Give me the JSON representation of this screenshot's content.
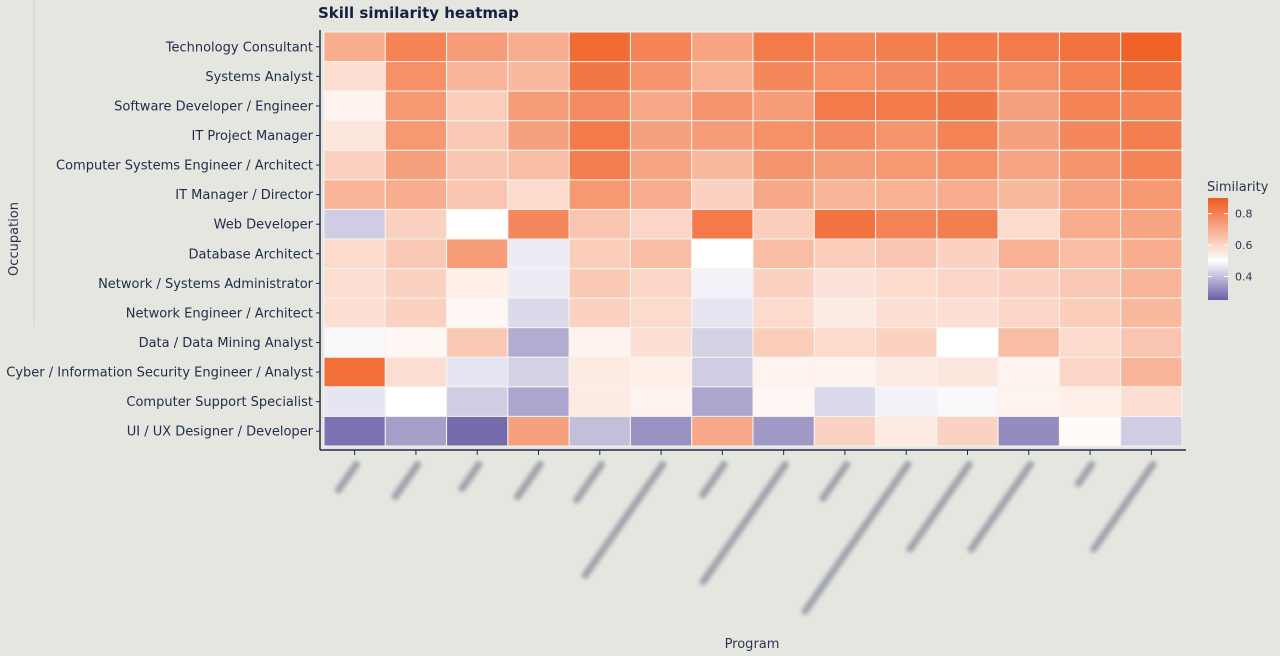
{
  "chart_data": {
    "type": "heatmap",
    "title": "Skill similarity heatmap",
    "xlabel": "Program",
    "ylabel": "Occupation",
    "x_tick_labels_legible": false,
    "rows": [
      "Technology Consultant",
      "Systems Analyst",
      "Software Developer / Engineer",
      "IT Project Manager",
      "Computer Systems Engineer / Architect",
      "IT Manager / Director",
      "Web Developer",
      "Database Architect",
      "Network / Systems Administrator",
      "Network Engineer / Architect",
      "Data / Data Mining Analyst",
      "Cyber / Information Security Engineer / Analyst",
      "Computer Support Specialist",
      "UI / UX Designer / Developer"
    ],
    "column_count": 14,
    "values": [
      [
        0.7,
        0.8,
        0.74,
        0.7,
        0.86,
        0.8,
        0.72,
        0.82,
        0.8,
        0.81,
        0.82,
        0.82,
        0.84,
        0.88
      ],
      [
        0.58,
        0.77,
        0.68,
        0.67,
        0.83,
        0.76,
        0.69,
        0.79,
        0.77,
        0.78,
        0.79,
        0.77,
        0.8,
        0.84
      ],
      [
        0.53,
        0.75,
        0.62,
        0.74,
        0.78,
        0.71,
        0.76,
        0.74,
        0.82,
        0.82,
        0.83,
        0.73,
        0.8,
        0.8
      ],
      [
        0.56,
        0.75,
        0.63,
        0.73,
        0.82,
        0.73,
        0.74,
        0.77,
        0.78,
        0.76,
        0.8,
        0.73,
        0.79,
        0.81
      ],
      [
        0.61,
        0.73,
        0.64,
        0.66,
        0.81,
        0.72,
        0.67,
        0.76,
        0.74,
        0.75,
        0.77,
        0.72,
        0.76,
        0.8
      ],
      [
        0.68,
        0.7,
        0.64,
        0.59,
        0.75,
        0.7,
        0.61,
        0.71,
        0.68,
        0.69,
        0.7,
        0.67,
        0.72,
        0.75
      ],
      [
        0.42,
        0.61,
        0.5,
        0.79,
        0.64,
        0.6,
        0.82,
        0.62,
        0.84,
        0.8,
        0.81,
        0.59,
        0.7,
        0.72
      ],
      [
        0.59,
        0.63,
        0.74,
        0.47,
        0.62,
        0.66,
        0.5,
        0.66,
        0.62,
        0.64,
        0.61,
        0.69,
        0.66,
        0.7
      ],
      [
        0.58,
        0.61,
        0.54,
        0.47,
        0.63,
        0.6,
        0.48,
        0.61,
        0.57,
        0.59,
        0.6,
        0.61,
        0.63,
        0.68
      ],
      [
        0.58,
        0.61,
        0.52,
        0.44,
        0.61,
        0.59,
        0.46,
        0.59,
        0.55,
        0.58,
        0.58,
        0.6,
        0.62,
        0.67
      ],
      [
        0.49,
        0.52,
        0.63,
        0.37,
        0.53,
        0.58,
        0.43,
        0.62,
        0.59,
        0.61,
        0.5,
        0.66,
        0.59,
        0.64
      ],
      [
        0.85,
        0.58,
        0.46,
        0.43,
        0.55,
        0.54,
        0.42,
        0.53,
        0.53,
        0.55,
        0.56,
        0.53,
        0.6,
        0.68
      ],
      [
        0.46,
        0.5,
        0.42,
        0.36,
        0.55,
        0.53,
        0.36,
        0.52,
        0.44,
        0.48,
        0.49,
        0.53,
        0.54,
        0.58
      ],
      [
        0.28,
        0.35,
        0.27,
        0.73,
        0.4,
        0.33,
        0.71,
        0.34,
        0.61,
        0.55,
        0.61,
        0.32,
        0.51,
        0.42
      ]
    ],
    "legend": {
      "title": "Similarity",
      "ticks": [
        "0.4",
        "0.6",
        "0.8"
      ],
      "tick_values": [
        0.4,
        0.6,
        0.8
      ],
      "range": [
        0.25,
        0.9
      ],
      "midpoint": 0.5,
      "placement": "right"
    },
    "colors": {
      "low": "#6a5fa6",
      "mid": "#ffffff",
      "high": "#f05a1e"
    }
  }
}
